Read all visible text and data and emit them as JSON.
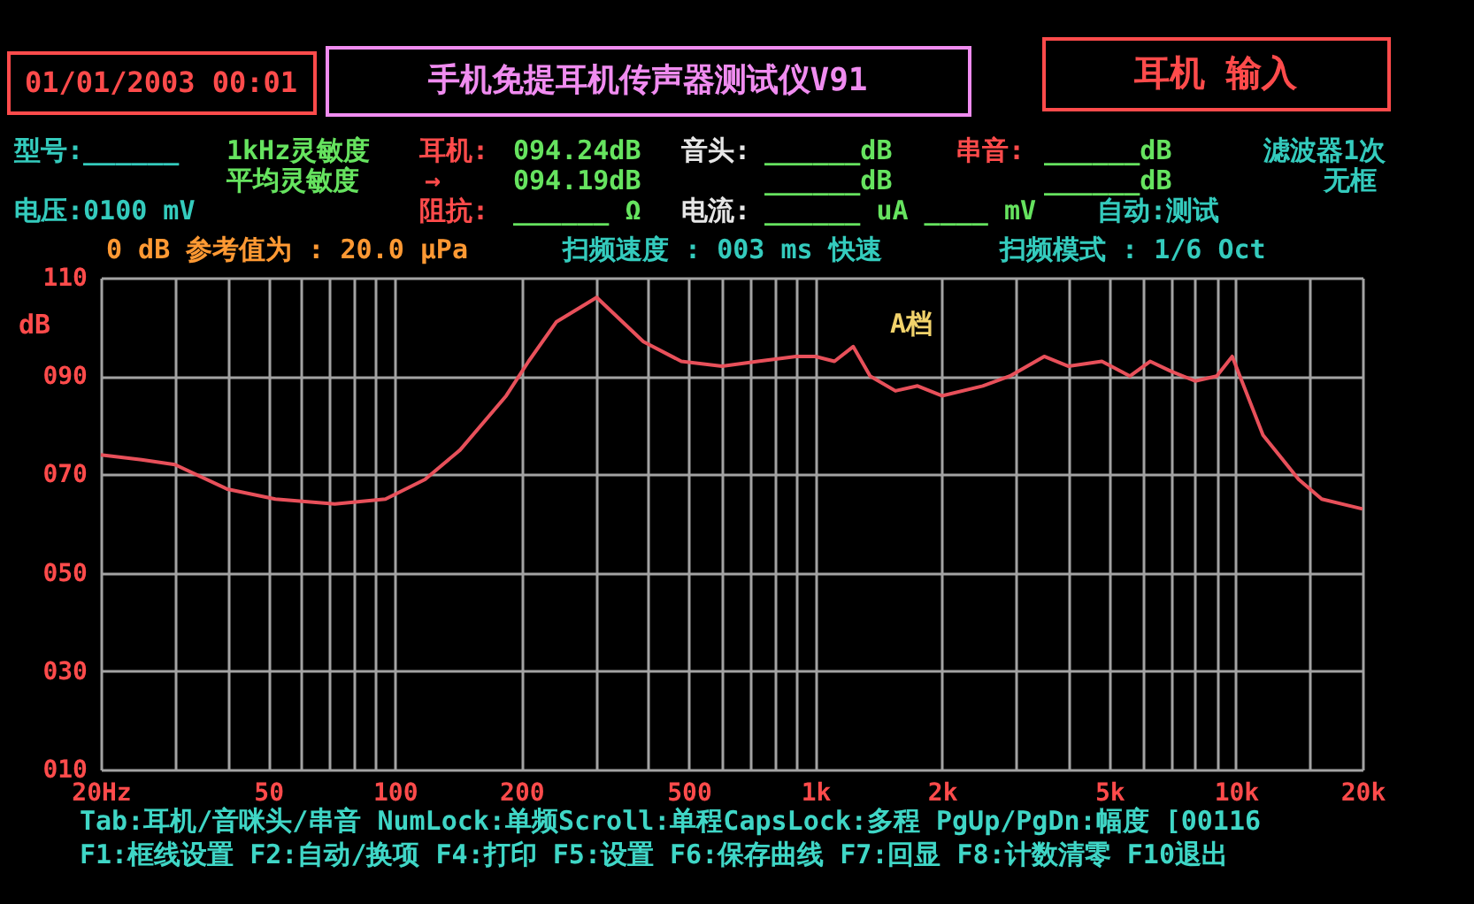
{
  "chart_data": {
    "type": "line",
    "title": "手机免提耳机传声器测试仪V91",
    "ylabel": "dB",
    "annotations": [
      "01/01/2003 00:01",
      "耳机 输入",
      "型号:______",
      "1kHz灵敏度",
      "平均灵敏度",
      "耳机:",
      "094.24dB",
      "→",
      "094.19dB",
      "音头:",
      "______dB",
      "______dB",
      "串音:",
      "______dB",
      "______dB",
      "滤波器1次",
      "无框",
      "电压:0100 mV",
      "阻抗:",
      "______ Ω",
      "电流:",
      "______ uA ____ mV",
      "自动:测试",
      "0 dB 参考值为 : 20.0 μPa",
      "扫频速度 : 003 ms 快速",
      "扫频模式 : 1/6 Oct",
      "A档",
      "Tab:耳机/音咪头/串音 NumLock:单频Scroll:单程CapsLock:多程 PgUp/PgDn:幅度 [00116",
      "F1:框线设置 F2:自动/换项 F4:打印 F5:设置 F6:保存曲线 F7:回显 F8:计数清零 F10退出"
    ],
    "x": [
      20,
      25,
      30,
      40,
      52,
      72,
      95,
      118,
      143,
      184,
      208,
      242,
      302,
      390,
      480,
      600,
      730,
      900,
      1000,
      1110,
      1230,
      1350,
      1550,
      1750,
      2000,
      2500,
      2900,
      3500,
      4000,
      4800,
      5600,
      6250,
      7000,
      8000,
      9000,
      9800,
      11600,
      14100,
      16000,
      20000
    ],
    "series": [
      {
        "color": "#e8505a",
        "values": [
          74,
          73,
          72,
          67,
          65,
          64,
          65,
          69,
          75,
          86,
          93,
          101,
          106,
          97,
          93,
          92,
          93,
          94,
          94,
          93,
          96,
          90,
          87,
          88,
          86,
          88,
          90,
          94,
          92,
          93,
          90,
          93,
          91,
          89,
          90,
          94,
          78,
          69,
          65,
          63
        ]
      }
    ],
    "xlim": [
      20,
      20000
    ],
    "ylim": [
      10,
      110
    ],
    "xticks": [
      {
        "value": 20,
        "label": "20Hz"
      },
      {
        "value": 30,
        "label": null
      },
      {
        "value": 40,
        "label": null
      },
      50,
      {
        "value": 60,
        "label": null
      },
      {
        "value": 70,
        "label": null
      },
      {
        "value": 80,
        "label": null
      },
      {
        "value": 90,
        "label": null
      },
      100,
      200,
      {
        "value": 300,
        "label": null
      },
      {
        "value": 400,
        "label": null
      },
      500,
      {
        "value": 600,
        "label": null
      },
      {
        "value": 700,
        "label": null
      },
      {
        "value": 800,
        "label": null
      },
      {
        "value": 900,
        "label": null
      },
      {
        "value": 1000,
        "label": "1k"
      },
      {
        "value": 2000,
        "label": "2k"
      },
      {
        "value": 3000,
        "label": null
      },
      {
        "value": 4000,
        "label": null
      },
      {
        "value": 5000,
        "label": "5k"
      },
      {
        "value": 6000,
        "label": null
      },
      {
        "value": 7000,
        "label": null
      },
      {
        "value": 8000,
        "label": null
      },
      {
        "value": 9000,
        "label": null
      },
      {
        "value": 10000,
        "label": "10k"
      },
      {
        "value": 15000,
        "label": null
      },
      {
        "value": 20000,
        "label": "20k"
      }
    ],
    "yticks": [
      {
        "value": 10,
        "label": "010"
      },
      {
        "value": 30,
        "label": "030"
      },
      {
        "value": 50,
        "label": "050"
      },
      {
        "value": 70,
        "label": "070"
      },
      {
        "value": 90,
        "label": "090"
      },
      110
    ],
    "log": "x",
    "grid": true,
    "marker": "none",
    "line_style": "solid"
  }
}
